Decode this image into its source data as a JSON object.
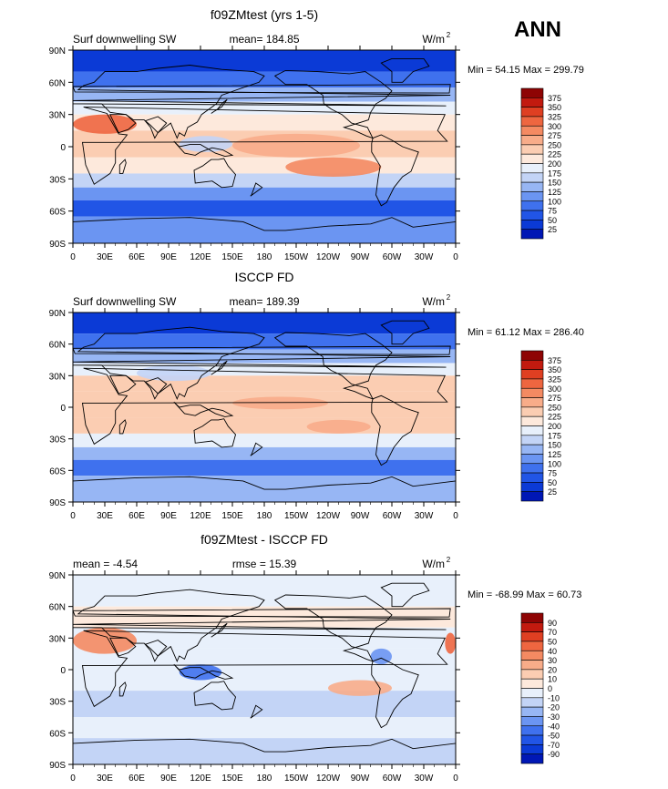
{
  "season": "ANN",
  "colors": {
    "mean_scale": [
      "#00007f",
      "#0017b5",
      "#0b3ad6",
      "#2155e6",
      "#3f71ee",
      "#6b95f2",
      "#97b6f4",
      "#c3d4f6",
      "#e8f0fb",
      "#fde9dc",
      "#fbcdb2",
      "#f8ac89",
      "#f48a62",
      "#ee6640",
      "#df3f22",
      "#c21a0f",
      "#8e0404"
    ],
    "diff_scale": [
      "#00007f",
      "#0017b5",
      "#0b3ad6",
      "#2155e6",
      "#3f71ee",
      "#6b95f2",
      "#97b6f4",
      "#c3d4f6",
      "#e8f0fb",
      "#fde9dc",
      "#fbcdb2",
      "#f8ac89",
      "#f48a62",
      "#ee6640",
      "#df3f22",
      "#c21a0f",
      "#8e0404"
    ],
    "coast": "#000000"
  },
  "panels": [
    {
      "title": "f09ZMtest (yrs 1-5)",
      "left_label": "Surf downwelling SW",
      "center_label": "mean= 184.85",
      "units": "W/m",
      "units_sup": "2",
      "minmax": "Min =   54.15 Max =  299.79",
      "colorbar_labels": [
        "375",
        "350",
        "325",
        "300",
        "275",
        "250",
        "225",
        "200",
        "175",
        "150",
        "125",
        "100",
        "75",
        "50",
        "25"
      ]
    },
    {
      "title": "ISCCP FD",
      "left_label": "Surf downwelling SW",
      "center_label": "mean= 189.39",
      "units": "W/m",
      "units_sup": "2",
      "minmax": "Min =   61.12 Max =  286.40",
      "colorbar_labels": [
        "375",
        "350",
        "325",
        "300",
        "275",
        "250",
        "225",
        "200",
        "175",
        "150",
        "125",
        "100",
        "75",
        "50",
        "25"
      ]
    },
    {
      "title": "f09ZMtest - ISCCP FD",
      "left_label": "mean =   -4.54",
      "center_label": "rmse =   15.39",
      "units": "W/m",
      "units_sup": "2",
      "minmax": "Min =  -68.99 Max =   60.73",
      "colorbar_labels": [
        "90",
        "70",
        "50",
        "40",
        "30",
        "20",
        "10",
        "0",
        "-10",
        "-20",
        "-30",
        "-40",
        "-50",
        "-70",
        "-90"
      ]
    }
  ],
  "chart_data": [
    {
      "type": "heatmap",
      "title": "f09ZMtest (yrs 1-5)",
      "variable": "Surf downwelling SW",
      "units": "W/m2",
      "mean": 184.85,
      "min": 54.15,
      "max": 299.79,
      "x_ticks": [
        "0",
        "30E",
        "60E",
        "90E",
        "120E",
        "150E",
        "180",
        "150W",
        "120W",
        "90W",
        "60W",
        "30W",
        "0"
      ],
      "y_ticks": [
        "90N",
        "60N",
        "30N",
        "0",
        "30S",
        "60S",
        "90S"
      ],
      "levels": [
        25,
        50,
        75,
        100,
        125,
        150,
        175,
        200,
        225,
        250,
        275,
        300,
        325,
        350,
        375
      ]
    },
    {
      "type": "heatmap",
      "title": "ISCCP FD",
      "variable": "Surf downwelling SW",
      "units": "W/m2",
      "mean": 189.39,
      "min": 61.12,
      "max": 286.4,
      "x_ticks": [
        "0",
        "30E",
        "60E",
        "90E",
        "120E",
        "150E",
        "180",
        "150W",
        "120W",
        "90W",
        "60W",
        "30W",
        "0"
      ],
      "y_ticks": [
        "90N",
        "60N",
        "30N",
        "0",
        "30S",
        "60S",
        "90S"
      ],
      "levels": [
        25,
        50,
        75,
        100,
        125,
        150,
        175,
        200,
        225,
        250,
        275,
        300,
        325,
        350,
        375
      ]
    },
    {
      "type": "heatmap",
      "title": "f09ZMtest - ISCCP FD",
      "units": "W/m2",
      "mean": -4.54,
      "rmse": 15.39,
      "min": -68.99,
      "max": 60.73,
      "x_ticks": [
        "0",
        "30E",
        "60E",
        "90E",
        "120E",
        "150E",
        "180",
        "150W",
        "120W",
        "90W",
        "60W",
        "30W",
        "0"
      ],
      "y_ticks": [
        "90N",
        "60N",
        "30N",
        "0",
        "30S",
        "60S",
        "90S"
      ],
      "levels": [
        -90,
        -70,
        -50,
        -40,
        -30,
        -20,
        -10,
        0,
        10,
        20,
        30,
        40,
        50,
        70,
        90
      ]
    }
  ]
}
